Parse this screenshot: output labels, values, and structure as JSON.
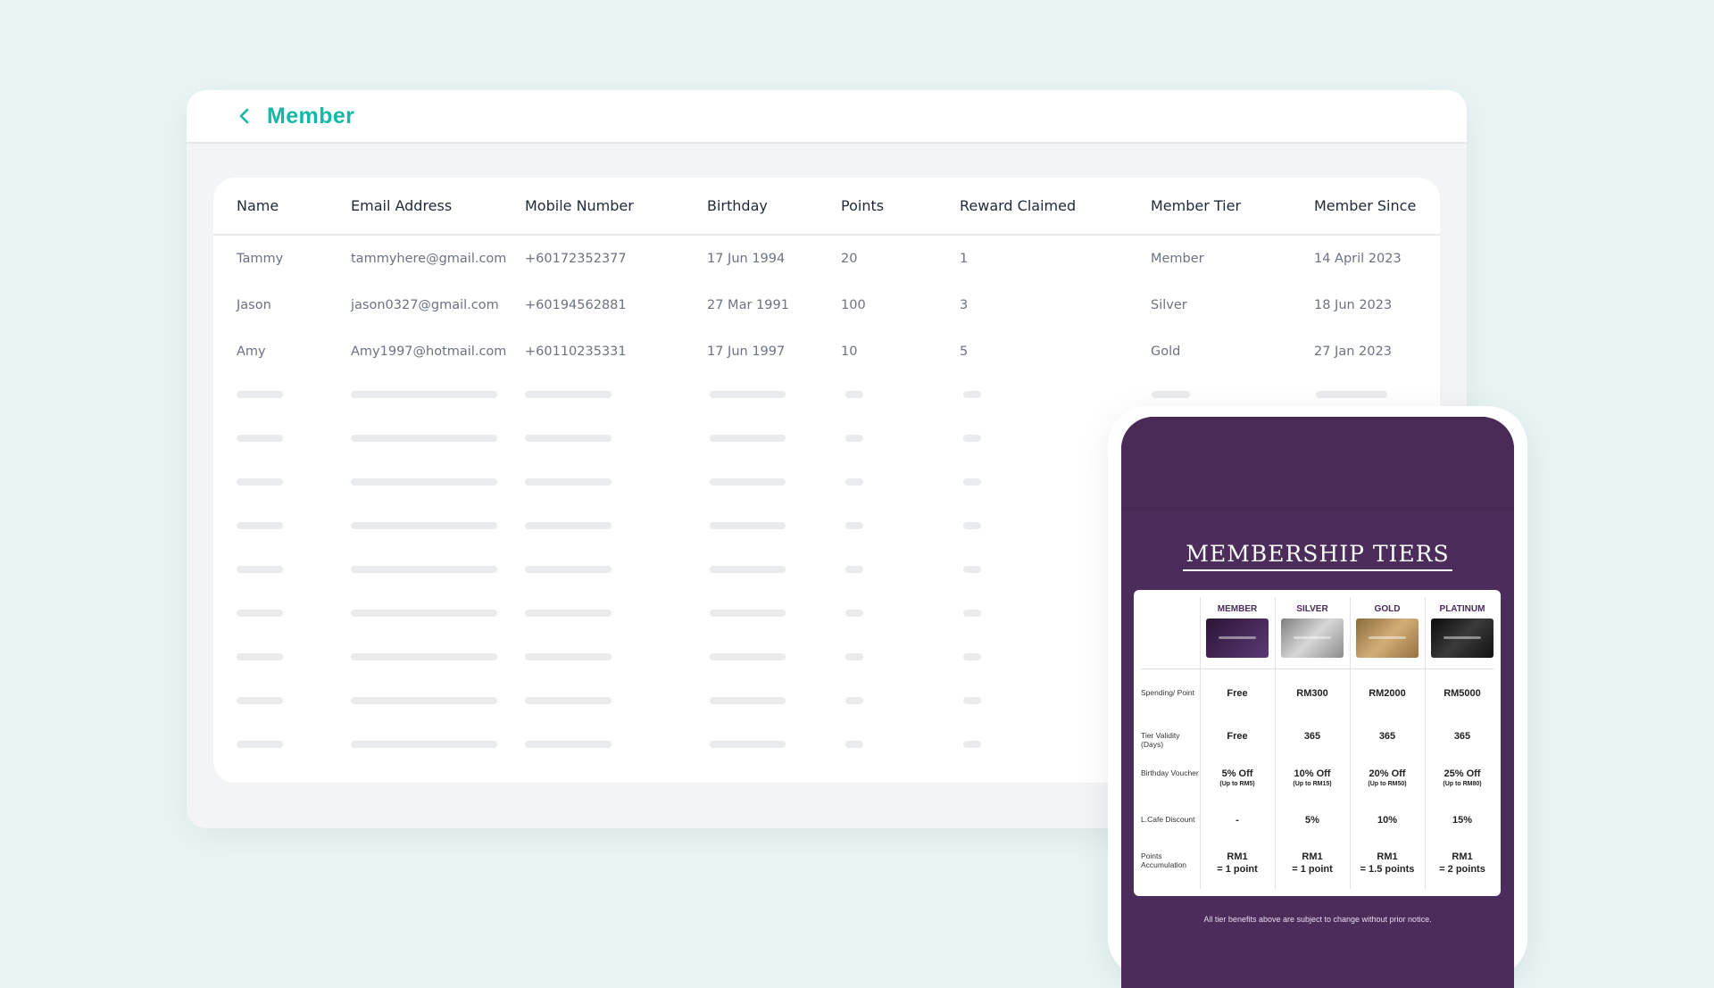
{
  "header": {
    "title": "Member"
  },
  "table": {
    "columns": [
      "Name",
      "Email Address",
      "Mobile Number",
      "Birthday",
      "Points",
      "Reward Claimed",
      "Member Tier",
      "Member Since"
    ],
    "rows": [
      [
        "Tammy",
        "tammyhere@gmail.com",
        "+60172352377",
        "17 Jun 1994",
        "20",
        "1",
        "Member",
        "14 April 2023"
      ],
      [
        "Jason",
        "jason0327@gmail.com",
        "+60194562881",
        "27 Mar 1991",
        "100",
        "3",
        "Silver",
        "18 Jun 2023"
      ],
      [
        "Amy",
        "Amy1997@hotmail.com",
        "+60110235331",
        "17 Jun 1997",
        "10",
        "5",
        "Gold",
        "27 Jan 2023"
      ]
    ]
  },
  "tiers": {
    "title": "MEMBERSHIP TIERS",
    "levels": [
      {
        "name": "MEMBER",
        "color": "#3b2148"
      },
      {
        "name": "SILVER",
        "color": "#a8a8a8"
      },
      {
        "name": "GOLD",
        "color": "#b08a57"
      },
      {
        "name": "PLATINUM",
        "color": "#1b1b1b"
      }
    ],
    "rows": [
      {
        "label": "Spending/ Point",
        "values": [
          "Free",
          "RM300",
          "RM2000",
          "RM5000"
        ],
        "subs": [
          "",
          "",
          "",
          ""
        ]
      },
      {
        "label": "Tier Validity (Days)",
        "values": [
          "Free",
          "365",
          "365",
          "365"
        ],
        "subs": [
          "",
          "",
          "",
          ""
        ]
      },
      {
        "label": "Birthday Voucher",
        "values": [
          "5% Off",
          "10% Off",
          "20% Off",
          "25% Off"
        ],
        "subs": [
          "(Up to RM5)",
          "(Up to RM15)",
          "(Up to RM50)",
          "(Up to RM80)"
        ]
      },
      {
        "label": "L.Cafe Discount",
        "values": [
          "-",
          "5%",
          "10%",
          "15%"
        ],
        "subs": [
          "",
          "",
          "",
          ""
        ]
      },
      {
        "label": "Points Accumulation",
        "values": [
          "RM1",
          "RM1",
          "RM1",
          "RM1"
        ],
        "subs": [
          "= 1 point",
          "= 1 point",
          "= 1.5 points",
          "= 2 points"
        ]
      }
    ],
    "notice": "All tier benefits above are subject to change without prior notice."
  },
  "colors": {
    "accent": "#14b8a6",
    "purple": "#4b2c5b"
  },
  "icons": {
    "back": "chevron-left-icon"
  }
}
